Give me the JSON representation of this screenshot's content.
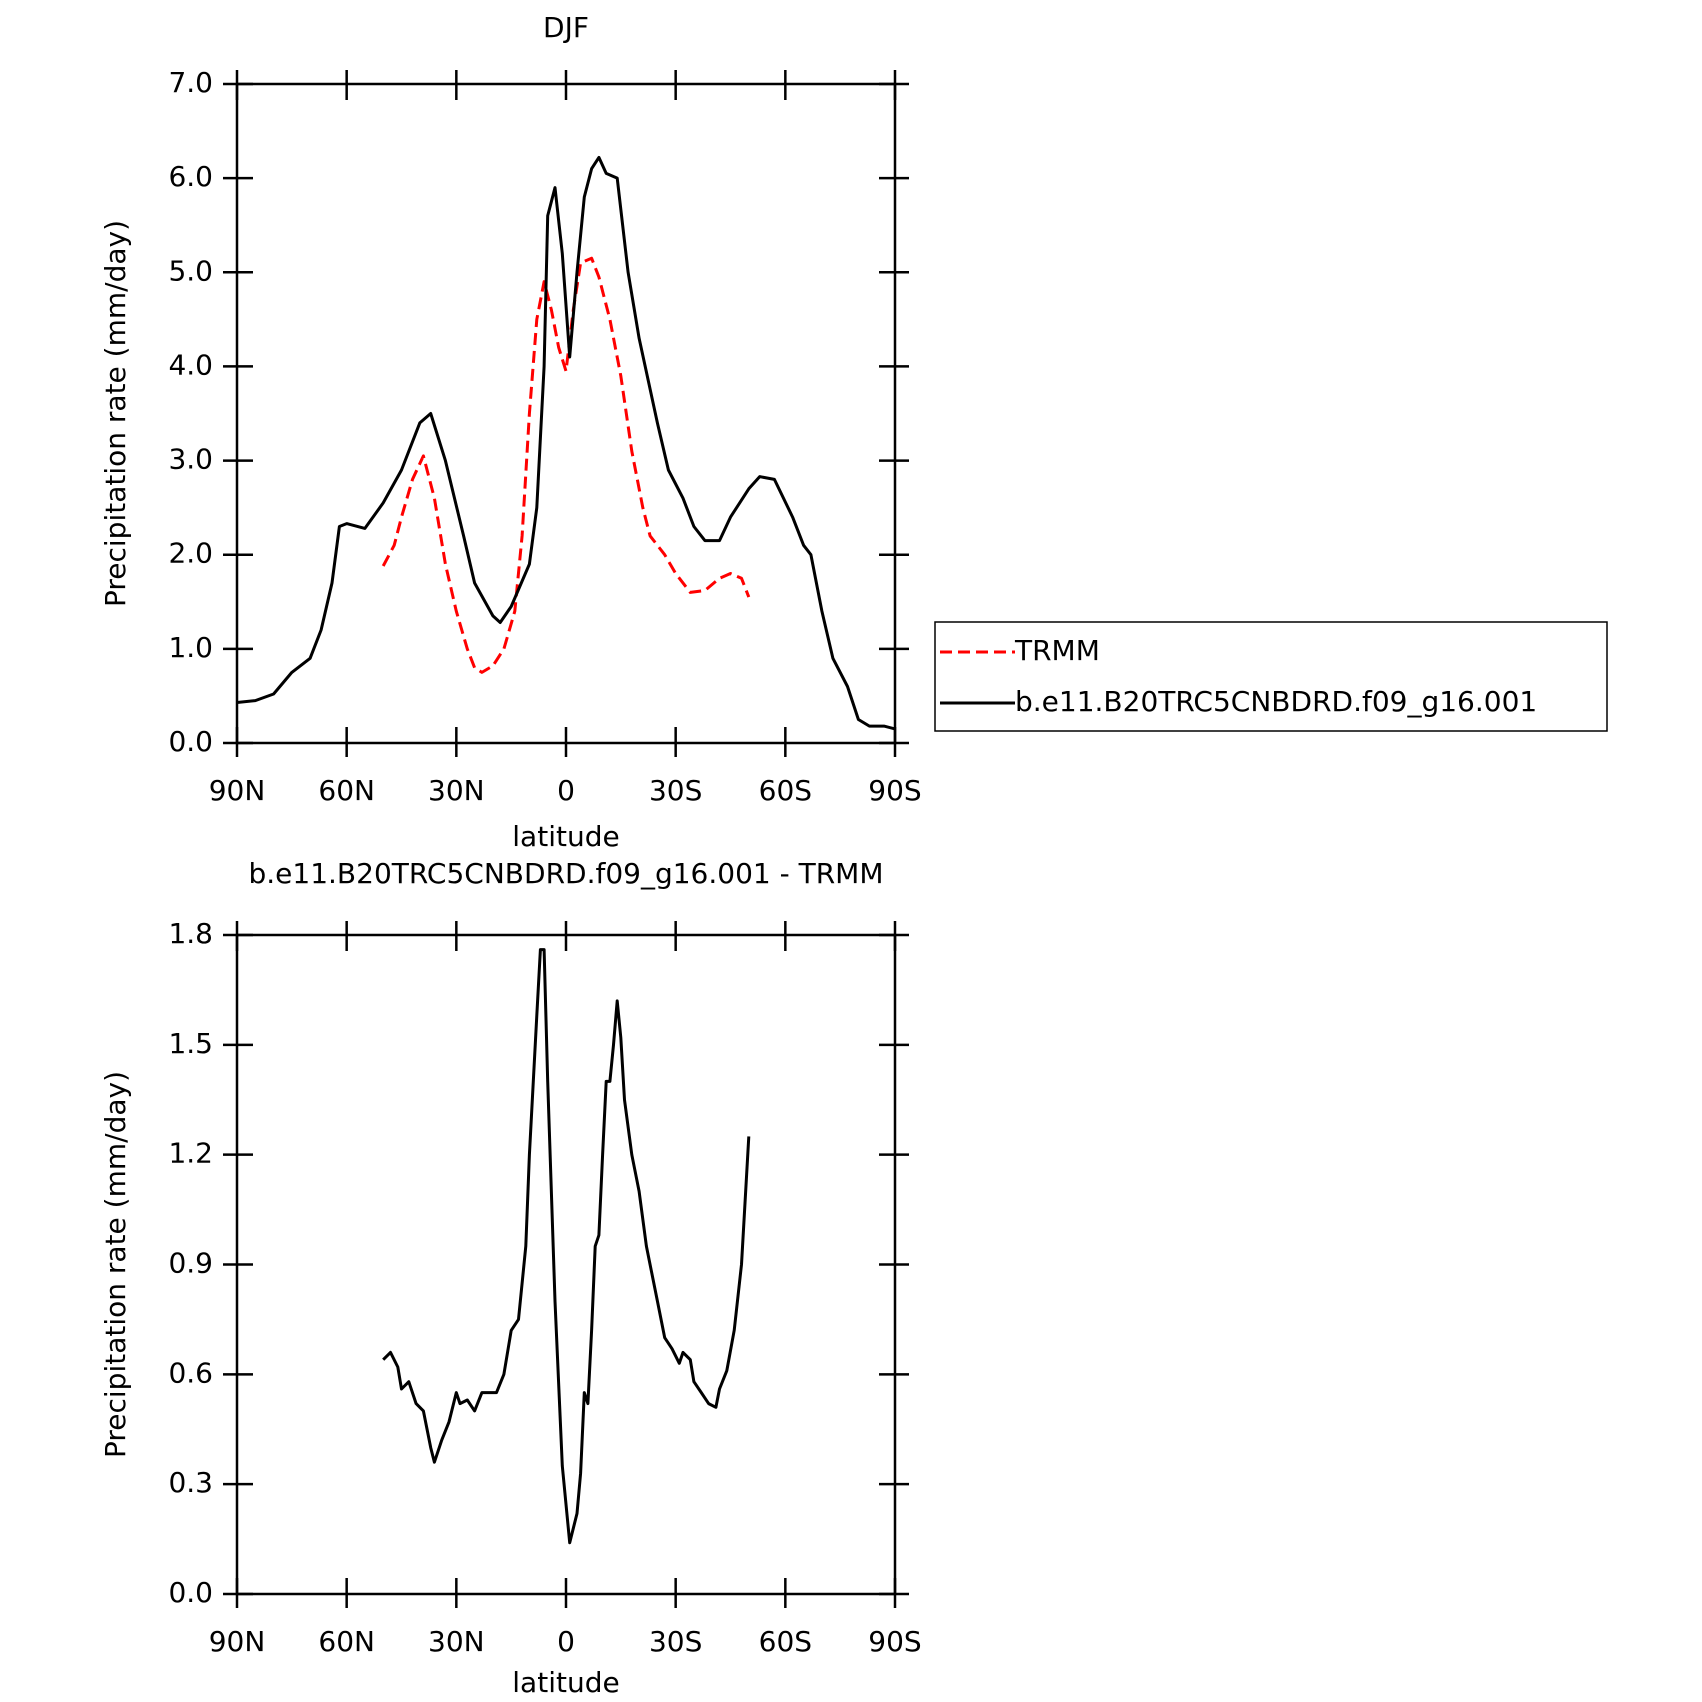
{
  "chart_data": [
    {
      "type": "line",
      "title": "DJF",
      "xlabel": "latitude",
      "ylabel": "Precipitation rate (mm/day)",
      "xlim": [
        90,
        -90
      ],
      "xticks": [
        {
          "value": 90,
          "label": "90N"
        },
        {
          "value": 60,
          "label": "60N"
        },
        {
          "value": 30,
          "label": "30N"
        },
        0,
        {
          "value": -30,
          "label": "30S"
        },
        {
          "value": -60,
          "label": "60S"
        },
        {
          "value": -90,
          "label": "90S"
        }
      ],
      "ylim": [
        0,
        7
      ],
      "yticks": [
        {
          "value": 0,
          "label": "0.0"
        },
        {
          "value": 1,
          "label": "1.0"
        },
        {
          "value": 2,
          "label": "2.0"
        },
        {
          "value": 3,
          "label": "3.0"
        },
        {
          "value": 4,
          "label": "4.0"
        },
        {
          "value": 5,
          "label": "5.0"
        },
        {
          "value": 6,
          "label": "6.0"
        },
        {
          "value": 7,
          "label": "7.0"
        }
      ],
      "legend": "right",
      "series": [
        {
          "name": "TRMM",
          "color": "#ff0000",
          "linestyle": "dashed",
          "x": [
            50,
            47,
            45,
            42,
            39,
            36,
            33,
            30,
            27,
            25,
            23,
            20,
            17,
            14,
            12,
            10,
            8,
            6,
            4,
            2,
            0,
            -2,
            -4,
            -7,
            -9,
            -12,
            -15,
            -18,
            -21,
            -23,
            -27,
            -30,
            -34,
            -38,
            -42,
            -45,
            -48,
            -50
          ],
          "values": [
            1.88,
            2.1,
            2.4,
            2.8,
            3.05,
            2.6,
            1.9,
            1.4,
            1.0,
            0.8,
            0.75,
            0.82,
            1.0,
            1.4,
            2.2,
            3.5,
            4.5,
            4.9,
            4.6,
            4.2,
            3.95,
            4.6,
            5.1,
            5.15,
            4.95,
            4.5,
            3.9,
            3.1,
            2.5,
            2.2,
            2.0,
            1.8,
            1.6,
            1.62,
            1.75,
            1.8,
            1.75,
            1.55
          ]
        },
        {
          "name": "b.e11.B20TRC5CNBDRD.f09_g16.001",
          "color": "#000000",
          "linestyle": "solid",
          "x": [
            90,
            85,
            80,
            75,
            70,
            67,
            64,
            62,
            60,
            55,
            50,
            45,
            40,
            37,
            33,
            28,
            25,
            20,
            18,
            15,
            10,
            8,
            6,
            5,
            3,
            1,
            -1,
            -3,
            -5,
            -7,
            -9,
            -11,
            -14,
            -17,
            -20,
            -25,
            -28,
            -32,
            -35,
            -38,
            -42,
            -45,
            -50,
            -53,
            -57,
            -62,
            -65,
            -67,
            -70,
            -73,
            -77,
            -80,
            -83,
            -87,
            -90
          ],
          "values": [
            0.43,
            0.45,
            0.52,
            0.75,
            0.9,
            1.2,
            1.7,
            2.3,
            2.33,
            2.28,
            2.55,
            2.9,
            3.4,
            3.5,
            3.0,
            2.2,
            1.7,
            1.35,
            1.28,
            1.45,
            1.9,
            2.5,
            4.0,
            5.6,
            5.9,
            5.2,
            4.1,
            5.0,
            5.8,
            6.1,
            6.22,
            6.05,
            6.0,
            5.0,
            4.3,
            3.4,
            2.9,
            2.6,
            2.3,
            2.15,
            2.15,
            2.4,
            2.7,
            2.83,
            2.8,
            2.4,
            2.1,
            2.0,
            1.4,
            0.9,
            0.6,
            0.25,
            0.18,
            0.18,
            0.15
          ]
        }
      ]
    },
    {
      "type": "line",
      "title": "b.e11.B20TRC5CNBDRD.f09_g16.001 - TRMM",
      "xlabel": "latitude",
      "ylabel": "Precipitation rate (mm/day)",
      "xlim": [
        90,
        -90
      ],
      "xticks": [
        {
          "value": 90,
          "label": "90N"
        },
        {
          "value": 60,
          "label": "60N"
        },
        {
          "value": 30,
          "label": "30N"
        },
        0,
        {
          "value": -30,
          "label": "30S"
        },
        {
          "value": -60,
          "label": "60S"
        },
        {
          "value": -90,
          "label": "90S"
        }
      ],
      "ylim": [
        0,
        1.8
      ],
      "yticks": [
        {
          "value": 0,
          "label": "0.0"
        },
        0.3,
        0.6,
        0.9,
        1.2,
        1.5,
        1.8
      ],
      "series": [
        {
          "color": "#000000",
          "linestyle": "solid",
          "x": [
            50,
            48,
            46,
            45,
            43,
            41,
            39,
            37,
            36,
            34,
            32,
            30,
            29,
            27,
            25,
            23,
            21,
            19,
            17,
            15,
            13,
            11,
            10,
            8,
            7,
            6,
            5,
            3,
            1,
            -1,
            -3,
            -4,
            -5,
            -6,
            -7,
            -8,
            -9,
            -10,
            -11,
            -12,
            -13,
            -14,
            -15,
            -16,
            -18,
            -20,
            -22,
            -25,
            -27,
            -29,
            -31,
            -32,
            -34,
            -35,
            -37,
            -39,
            -41,
            -42,
            -44,
            -46,
            -48,
            -50
          ],
          "values": [
            0.64,
            0.66,
            0.62,
            0.56,
            0.58,
            0.52,
            0.5,
            0.4,
            0.36,
            0.42,
            0.47,
            0.55,
            0.52,
            0.53,
            0.5,
            0.55,
            0.55,
            0.55,
            0.6,
            0.72,
            0.75,
            0.95,
            1.2,
            1.58,
            1.76,
            1.76,
            1.4,
            0.8,
            0.35,
            0.14,
            0.22,
            0.33,
            0.55,
            0.52,
            0.72,
            0.95,
            0.98,
            1.2,
            1.4,
            1.4,
            1.5,
            1.62,
            1.52,
            1.35,
            1.2,
            1.1,
            0.95,
            0.8,
            0.7,
            0.67,
            0.63,
            0.66,
            0.64,
            0.58,
            0.55,
            0.52,
            0.51,
            0.56,
            0.61,
            0.72,
            0.9,
            1.25
          ]
        }
      ]
    }
  ]
}
